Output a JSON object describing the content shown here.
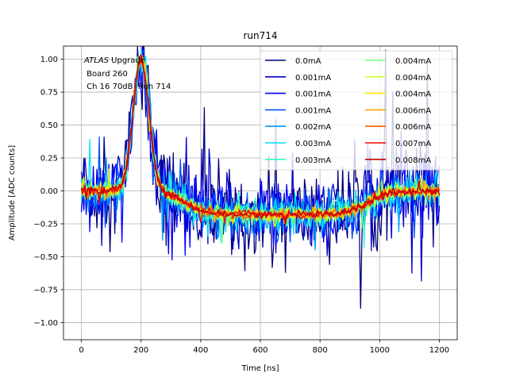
{
  "chart_data": {
    "type": "line",
    "title": "run714",
    "xlabel": "Time [ns]",
    "ylabel": "Amplitude [ADC counts]",
    "xlim": [
      -60,
      1260
    ],
    "ylim": [
      -1.13,
      1.1
    ],
    "xticks": [
      0,
      200,
      400,
      600,
      800,
      1000,
      1200
    ],
    "yticks": [
      -1.0,
      -0.75,
      -0.5,
      -0.25,
      0.0,
      0.25,
      0.5,
      0.75,
      1.0
    ],
    "xtick_labels": [
      "0",
      "200",
      "400",
      "600",
      "800",
      "1000",
      "1200"
    ],
    "ytick_labels": [
      "−1.00",
      "−0.75",
      "−0.50",
      "−0.25",
      "0.00",
      "0.25",
      "0.50",
      "0.75",
      "1.00"
    ],
    "grid": true,
    "legend_position": "top-right",
    "legend_columns": 2,
    "annotation": {
      "line1_italic": "ATLAS",
      "line1_rest": " Upgrade",
      "line2": " Board 260",
      "line3": " Ch 16 70dB  Run 714"
    },
    "waveform_model": {
      "x_range": [
        0,
        1200
      ],
      "baseline": 0.0,
      "peak_time": 200,
      "peak_amplitude": 1.0,
      "undershoot_time": 700,
      "undershoot_amplitude": -0.18,
      "return_time": 1050
    },
    "series": [
      {
        "name": "0.0mA",
        "color": "#00007f",
        "noise": 0.32
      },
      {
        "name": "0.001mA",
        "color": "#0000c8",
        "noise": 0.26
      },
      {
        "name": "0.001mA",
        "color": "#0000ff",
        "noise": 0.22
      },
      {
        "name": "0.001mA",
        "color": "#0050ff",
        "noise": 0.17
      },
      {
        "name": "0.002mA",
        "color": "#009cff",
        "noise": 0.13
      },
      {
        "name": "0.003mA",
        "color": "#00e4f8",
        "noise": 0.1
      },
      {
        "name": "0.003mA",
        "color": "#2cffca",
        "noise": 0.08
      },
      {
        "name": "0.004mA",
        "color": "#7cff79",
        "noise": 0.065
      },
      {
        "name": "0.004mA",
        "color": "#caff2c",
        "noise": 0.055
      },
      {
        "name": "0.004mA",
        "color": "#ffe600",
        "noise": 0.045
      },
      {
        "name": "0.006mA",
        "color": "#ffa300",
        "noise": 0.04
      },
      {
        "name": "0.006mA",
        "color": "#ff6000",
        "noise": 0.035
      },
      {
        "name": "0.007mA",
        "color": "#f10800",
        "noise": 0.03
      },
      {
        "name": "0.008mA",
        "color": "#c80000",
        "noise": 0.025
      }
    ]
  }
}
